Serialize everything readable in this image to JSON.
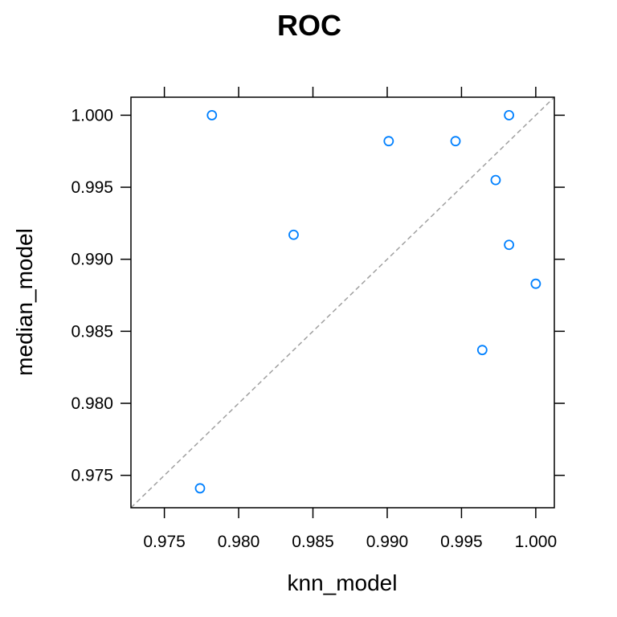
{
  "chart_data": {
    "type": "scatter",
    "title": "ROC",
    "xlabel": "knn_model",
    "ylabel": "median_model",
    "xlim": [
      0.97275,
      1.00125
    ],
    "ylim": [
      0.97275,
      1.00125
    ],
    "x_ticks": [
      "0.975",
      "0.980",
      "0.985",
      "0.990",
      "0.995",
      "1.000"
    ],
    "y_ticks": [
      "0.975",
      "0.980",
      "0.985",
      "0.990",
      "0.995",
      "1.000"
    ],
    "grid": false,
    "reference_line": "y = x",
    "point_color": "#0080ff",
    "reference_line_color": "#a0a0a0",
    "points": [
      {
        "x": 0.9782,
        "y": 1.0
      },
      {
        "x": 0.9901,
        "y": 0.9982
      },
      {
        "x": 0.9946,
        "y": 0.9982
      },
      {
        "x": 0.9982,
        "y": 1.0
      },
      {
        "x": 0.9973,
        "y": 0.9955
      },
      {
        "x": 0.9837,
        "y": 0.9917
      },
      {
        "x": 0.9982,
        "y": 0.991
      },
      {
        "x": 1.0,
        "y": 0.9883
      },
      {
        "x": 0.9964,
        "y": 0.9837
      },
      {
        "x": 0.9774,
        "y": 0.9741
      }
    ]
  }
}
